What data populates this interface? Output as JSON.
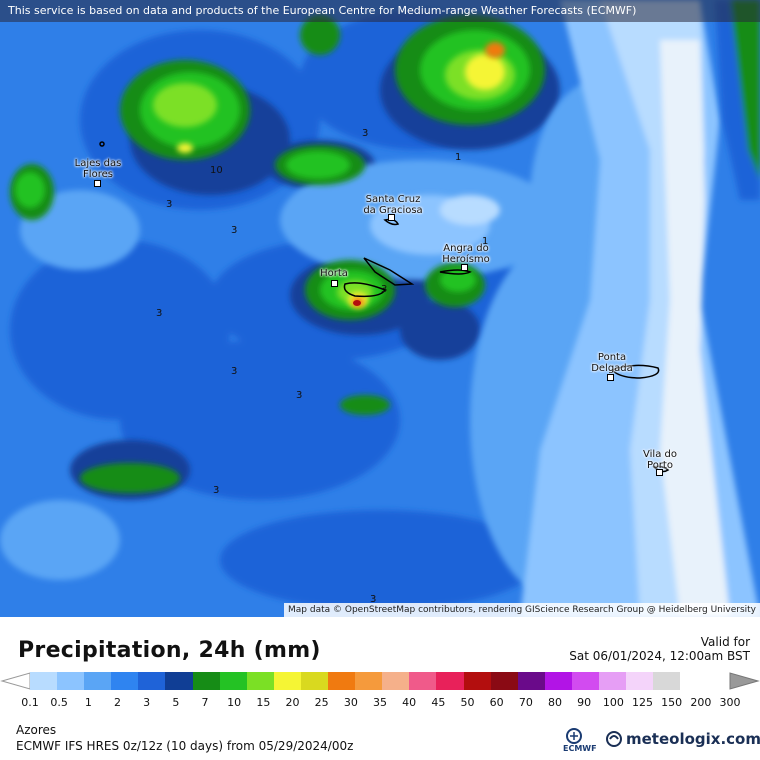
{
  "banner": "This service is based on data and products of the European Centre for Medium-range Weather Forecasts (ECMWF)",
  "attribution": "Map data © OpenStreetMap contributors, rendering GIScience Research Group @ Heidelberg University",
  "places": {
    "lajes": "Lajes das Flores",
    "santa_cruz": "Santa Cruz da Graciosa",
    "angra": "Angra do Heroísmo",
    "horta": "Horta",
    "ponta": "Ponta Delgada",
    "vila": "Vila do Porto"
  },
  "contour_labels": [
    "3",
    "10",
    "3",
    "1",
    "3",
    "3",
    "3",
    "3",
    "3",
    "3",
    "1",
    "3"
  ],
  "footer": {
    "title": "Precipitation, 24h (mm)",
    "valid_label": "Valid for",
    "valid_date": "Sat 06/01/2024, 12:00am BST",
    "region": "Azores",
    "model": "ECMWF IFS HRES 0z/12z (10 days)  from  05/29/2024/00z",
    "ecmwf": "ECMWF",
    "brand": "meteologix.com"
  },
  "scale": {
    "ticks": [
      "0.1",
      "0.5",
      "1",
      "2",
      "3",
      "5",
      "7",
      "10",
      "15",
      "20",
      "25",
      "30",
      "35",
      "40",
      "45",
      "50",
      "60",
      "70",
      "80",
      "90",
      "100",
      "125",
      "150",
      "200",
      "300"
    ],
    "colors": [
      "#b8dcff",
      "#8cc4ff",
      "#5aa5f5",
      "#2f84f0",
      "#1f63d8",
      "#103e95",
      "#168c16",
      "#24c224",
      "#7be025",
      "#f5f534",
      "#d9d91f",
      "#f07a10",
      "#f59a3c",
      "#f5b08a",
      "#f05a8a",
      "#e8215a",
      "#b30e0e",
      "#8a0a14",
      "#6a0a8a",
      "#b214e6",
      "#d24bf0",
      "#e69ef5",
      "#f4d4fa",
      "#d8d8d8"
    ]
  }
}
